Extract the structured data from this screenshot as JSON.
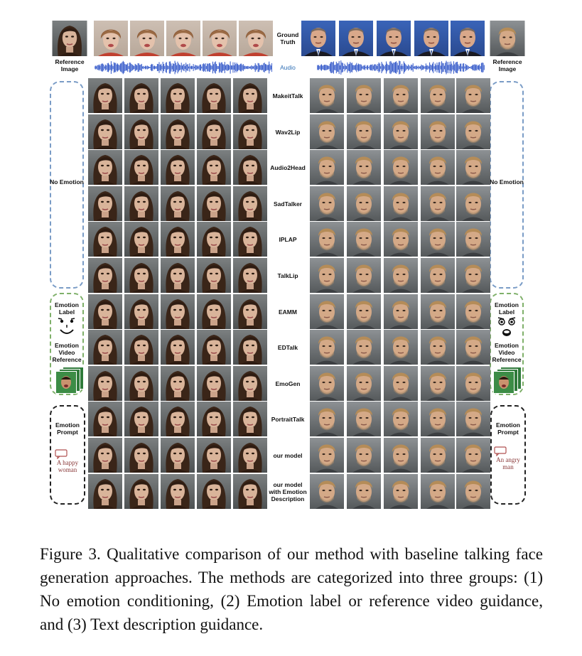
{
  "labels": {
    "ground_truth": "Ground Truth",
    "audio": "Audio",
    "reference_left": "Reference Image",
    "reference_right": "Reference Image",
    "no_emotion_left": "No Emotion",
    "no_emotion_right": "No Emotion",
    "emotion_label_left": "Emotion Label",
    "emotion_label_right": "Emotion Label",
    "emotion_video_left": "Emotion Video Reference",
    "emotion_video_right": "Emotion Video Reference",
    "emotion_prompt_left": "Emotion Prompt",
    "emotion_prompt_right": "Emotion Prompt",
    "prompt_text_left": "A happy woman",
    "prompt_text_right": "An angry man"
  },
  "methods": [
    "MakeitTalk",
    "Wav2Lip",
    "Audio2Head",
    "SadTalker",
    "IPLAP",
    "TalkLip",
    "EAMM",
    "EDTalk",
    "EmoGen",
    "PortraitTalk",
    "our model",
    "our model with Emotion Description"
  ],
  "caption": "Figure 3. Qualitative comparison of our method with baseline talking face generation approaches. The methods are categorized into three groups: (1) No emotion conditioning, (2) Emotion label or reference video guidance, and (3) Text description guidance.",
  "colors": {
    "no_emotion_box": "#7a9cc6",
    "emotion_box": "#7fb06a",
    "prompt_box": "#222222",
    "audio_wave": "#2f55c8",
    "audio_label": "#2f6fb5"
  },
  "icons": {
    "woman_face": "female-portrait-icon",
    "man_face": "male-portrait-icon",
    "emotion_face_left": "happy-face-icon",
    "emotion_face_right": "surprised-face-icon",
    "speech_bubble": "speech-bubble-icon"
  }
}
